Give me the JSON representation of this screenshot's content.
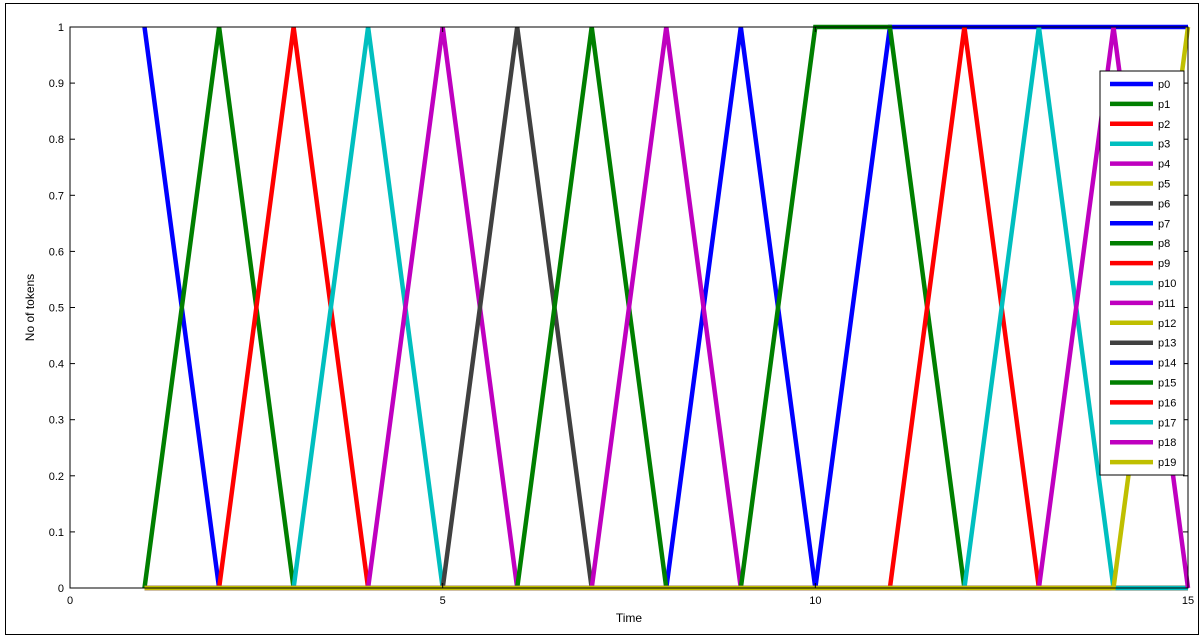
{
  "chart_data": {
    "type": "line",
    "title": "",
    "xlabel": "Time",
    "ylabel": "No of tokens",
    "xlim": [
      0,
      15
    ],
    "ylim": [
      0,
      1
    ],
    "xticks": [
      0,
      5,
      10,
      15
    ],
    "yticks": [
      0,
      0.1,
      0.2,
      0.3,
      0.4,
      0.5,
      0.6,
      0.7,
      0.8,
      0.9,
      1
    ],
    "grid": false,
    "legend_position": "top-right",
    "series": [
      {
        "name": "p0",
        "color": "#0000ff",
        "x": [
          1,
          2,
          15
        ],
        "y": [
          1,
          0,
          0
        ]
      },
      {
        "name": "p1",
        "color": "#007f00",
        "x": [
          1,
          2,
          3,
          15
        ],
        "y": [
          0,
          1,
          0,
          0
        ]
      },
      {
        "name": "p2",
        "color": "#ff0000",
        "x": [
          2,
          3,
          4,
          15
        ],
        "y": [
          0,
          1,
          0,
          0
        ]
      },
      {
        "name": "p3",
        "color": "#00bfbf",
        "x": [
          3,
          4,
          5,
          15
        ],
        "y": [
          0,
          1,
          0,
          0
        ]
      },
      {
        "name": "p4",
        "color": "#bf00bf",
        "x": [
          4,
          5,
          6,
          15
        ],
        "y": [
          0,
          1,
          0,
          0
        ]
      },
      {
        "name": "p5",
        "color": "#bfbf00",
        "x": [
          1,
          15
        ],
        "y": [
          0,
          0
        ]
      },
      {
        "name": "p6",
        "color": "#404040",
        "x": [
          5,
          6,
          7,
          15
        ],
        "y": [
          0,
          1,
          0,
          0
        ]
      },
      {
        "name": "p7",
        "color": "#0000ff",
        "x": [
          1,
          8,
          9,
          10,
          15
        ],
        "y": [
          0,
          0,
          1,
          0,
          0
        ]
      },
      {
        "name": "p8",
        "color": "#007f00",
        "x": [
          1,
          6,
          7,
          8,
          15
        ],
        "y": [
          0,
          0,
          1,
          0,
          0
        ]
      },
      {
        "name": "p9",
        "color": "#ff0000",
        "x": [
          1,
          15
        ],
        "y": [
          0,
          0
        ]
      },
      {
        "name": "p10",
        "color": "#00bfbf",
        "x": [
          1,
          15
        ],
        "y": [
          0,
          0
        ]
      },
      {
        "name": "p11",
        "color": "#bf00bf",
        "x": [
          1,
          7,
          8,
          9,
          15
        ],
        "y": [
          0,
          0,
          1,
          0,
          0
        ]
      },
      {
        "name": "p12",
        "color": "#bfbf00",
        "x": [
          1,
          15
        ],
        "y": [
          0,
          0
        ]
      },
      {
        "name": "p13",
        "color": "#404040",
        "x": [
          1,
          15
        ],
        "y": [
          0,
          0
        ]
      },
      {
        "name": "p14",
        "color": "#0000ff",
        "x": [
          1,
          10,
          11,
          15
        ],
        "y": [
          0,
          0,
          1,
          1
        ]
      },
      {
        "name": "p15",
        "color": "#007f00",
        "x": [
          1,
          9,
          10,
          11,
          12,
          15
        ],
        "y": [
          0,
          0,
          1,
          1,
          0,
          0
        ]
      },
      {
        "name": "p16",
        "color": "#ff0000",
        "x": [
          1,
          11,
          12,
          13,
          15
        ],
        "y": [
          0,
          0,
          1,
          0,
          0
        ]
      },
      {
        "name": "p17",
        "color": "#00bfbf",
        "x": [
          1,
          12,
          13,
          14,
          15
        ],
        "y": [
          0,
          0,
          1,
          0,
          0
        ]
      },
      {
        "name": "p18",
        "color": "#bf00bf",
        "x": [
          1,
          13,
          14,
          15
        ],
        "y": [
          0,
          0,
          1,
          0
        ]
      },
      {
        "name": "p19",
        "color": "#bfbf00",
        "x": [
          1,
          14,
          15
        ],
        "y": [
          0,
          0,
          1
        ]
      }
    ]
  }
}
